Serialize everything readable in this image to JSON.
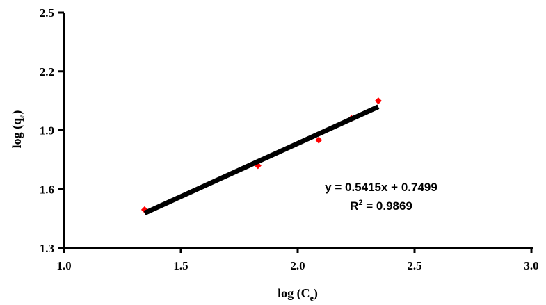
{
  "chart_data": {
    "type": "scatter",
    "xlabel": {
      "main": "log (C",
      "sub": "e",
      "close": ")"
    },
    "ylabel": {
      "main": "log (q",
      "sub": "e",
      "close": ")"
    },
    "xlim": [
      1.0,
      3.0
    ],
    "ylim": [
      1.3,
      2.5
    ],
    "xticks": [
      "1.0",
      "1.5",
      "2.0",
      "2.5",
      "3.0"
    ],
    "yticks": [
      "1.3",
      "1.6",
      "1.9",
      "2.2",
      "2.5"
    ],
    "grid": false,
    "legend": "none",
    "series": [
      {
        "type": "scatter",
        "marker": "diamond",
        "color": "#ff0000",
        "x": [
          1.345,
          1.83,
          2.09,
          2.23,
          2.345
        ],
        "y": [
          1.495,
          1.72,
          1.85,
          1.96,
          2.05
        ]
      }
    ],
    "trendline": {
      "type": "linear",
      "slope": 0.5415,
      "intercept": 0.7499,
      "x_range": [
        1.345,
        2.345
      ],
      "color": "#000000"
    },
    "annotations": {
      "equation": "y = 0.5415x + 0.7499",
      "r2_prefix": "R",
      "r2_sup": "2",
      "r2_rest": " = 0.9869"
    }
  }
}
